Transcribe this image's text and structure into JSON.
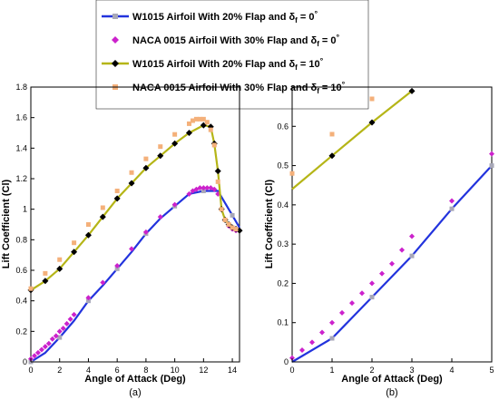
{
  "legend": {
    "entries": [
      {
        "id": "w0",
        "label": "W1015 Airfoil With 20% Flap and δf = 0°",
        "color": "#2233dd",
        "style": "line-square"
      },
      {
        "id": "n0",
        "label": "NACA 0015 Airfoil With 30% Flap and δf = 0°",
        "color": "#cc22cc",
        "style": "marker-diamond"
      },
      {
        "id": "w10",
        "label": "W1015 Airfoil With 20% Flap and δf = 10°",
        "color": "#b5b517",
        "style": "line-diamond"
      },
      {
        "id": "n10",
        "label": "NACA 0015 Airfoil With 30% Flap and δf = 10°",
        "color": "#f4b07a",
        "style": "marker-square"
      }
    ]
  },
  "chart_data": [
    {
      "type": "line",
      "caption": "(a)",
      "xlabel": "Angle of Attack (Deg)",
      "ylabel": "Lift Coefficient (Cl)",
      "xlim": [
        0,
        14.5
      ],
      "ylim": [
        0,
        1.8
      ],
      "xticks": [
        "0",
        "2",
        "4",
        "6",
        "8",
        "10",
        "12",
        "14"
      ],
      "yticks": [
        "0",
        "0.2",
        "0.4",
        "0.6",
        "0.8",
        "1",
        "1.2",
        "1.4",
        "1.6",
        "1.8"
      ],
      "grid": false,
      "series": [
        {
          "name": "W1015 Airfoil With 20% Flap and δf = 0°",
          "x": [
            0,
            1,
            2,
            3,
            4,
            5,
            6,
            7,
            8,
            9,
            10,
            11,
            12,
            13,
            14,
            14.5
          ],
          "y": [
            0,
            0.06,
            0.16,
            0.27,
            0.4,
            0.5,
            0.61,
            0.72,
            0.84,
            0.94,
            1.02,
            1.1,
            1.12,
            1.12,
            0.96,
            0.88
          ],
          "markers": [
            0,
            2,
            4,
            6,
            8,
            10,
            12,
            14
          ]
        },
        {
          "name": "NACA 0015 Airfoil With 30% Flap and δf = 0°",
          "x": [
            0,
            0.25,
            0.5,
            0.75,
            1,
            1.25,
            1.5,
            1.75,
            2,
            2.25,
            2.5,
            2.75,
            3,
            4,
            5,
            6,
            7,
            8,
            9,
            10,
            11,
            11.25,
            11.5,
            11.75,
            12,
            12.25,
            12.5,
            12.75,
            13,
            13.25,
            13.5,
            13.75,
            14,
            14.25
          ],
          "y": [
            0.02,
            0.04,
            0.06,
            0.08,
            0.1,
            0.12,
            0.15,
            0.17,
            0.2,
            0.22,
            0.25,
            0.28,
            0.31,
            0.42,
            0.52,
            0.63,
            0.74,
            0.85,
            0.95,
            1.03,
            1.1,
            1.12,
            1.13,
            1.14,
            1.14,
            1.14,
            1.14,
            1.13,
            1.1,
            1.0,
            0.93,
            0.89,
            0.87,
            0.86
          ]
        },
        {
          "name": "W1015 Airfoil With 20% Flap and δf = 10°",
          "x": [
            0,
            1,
            2,
            3,
            4,
            5,
            6,
            7,
            8,
            9,
            10,
            11,
            12,
            12.5,
            12.75,
            13,
            13.25,
            13.5,
            13.75,
            14,
            14.25,
            14.5
          ],
          "y": [
            0.47,
            0.53,
            0.61,
            0.72,
            0.83,
            0.95,
            1.07,
            1.17,
            1.27,
            1.35,
            1.43,
            1.5,
            1.55,
            1.54,
            1.43,
            1.25,
            1.0,
            0.93,
            0.9,
            0.88,
            0.87,
            0.86
          ],
          "markers": [
            0,
            1,
            2,
            3,
            4,
            5,
            6,
            7,
            8,
            9,
            10,
            11,
            12,
            12.5,
            12.75,
            13,
            13.25,
            13.5,
            13.75,
            14,
            14.25,
            14.5
          ]
        },
        {
          "name": "NACA 0015 Airfoil With 30% Flap and δf = 10°",
          "x": [
            0,
            1,
            2,
            3,
            4,
            5,
            6,
            7,
            8,
            9,
            10,
            11,
            11.25,
            11.5,
            11.75,
            12,
            12.25,
            12.5,
            12.75,
            13,
            13.25,
            13.5,
            13.75,
            14,
            14.25
          ],
          "y": [
            0.48,
            0.58,
            0.67,
            0.78,
            0.9,
            1.01,
            1.12,
            1.24,
            1.33,
            1.41,
            1.49,
            1.56,
            1.58,
            1.59,
            1.59,
            1.59,
            1.57,
            1.52,
            1.42,
            1.18,
            1.0,
            0.93,
            0.9,
            0.88,
            0.87
          ]
        }
      ]
    },
    {
      "type": "line",
      "caption": "(b)",
      "xlabel": "Angle of Attack (Deg)",
      "ylabel": "Lift Coefficient (Cl)",
      "xlim": [
        0,
        5
      ],
      "ylim": [
        0,
        0.7
      ],
      "xticks": [
        "0",
        "1",
        "2",
        "3",
        "4",
        "5"
      ],
      "yticks": [
        "0",
        "0.1",
        "0.2",
        "0.3",
        "0.4",
        "0.5",
        "0.6"
      ],
      "grid": false,
      "series": [
        {
          "name": "W1015 Airfoil With 20% Flap and δf = 0°",
          "x": [
            0,
            1,
            2,
            3,
            4,
            5
          ],
          "y": [
            0,
            0.06,
            0.165,
            0.27,
            0.39,
            0.5
          ],
          "markers": [
            1,
            2,
            3,
            4,
            5
          ]
        },
        {
          "name": "NACA 0015 Airfoil With 30% Flap and δf = 0°",
          "x": [
            0,
            0.25,
            0.5,
            0.75,
            1,
            1.25,
            1.5,
            1.75,
            2,
            2.25,
            2.5,
            2.75,
            3,
            4,
            5
          ],
          "y": [
            0.01,
            0.03,
            0.05,
            0.075,
            0.1,
            0.125,
            0.15,
            0.175,
            0.2,
            0.225,
            0.25,
            0.285,
            0.32,
            0.41,
            0.53
          ]
        },
        {
          "name": "W1015 Airfoil With 20% Flap and δf = 10°",
          "x": [
            0,
            1,
            2,
            3
          ],
          "y": [
            0.44,
            0.525,
            0.61,
            0.69
          ],
          "markers": [
            1,
            2,
            3
          ]
        },
        {
          "name": "NACA 0015 Airfoil With 30% Flap and δf = 10°",
          "x": [
            0,
            1,
            2
          ],
          "y": [
            0.48,
            0.58,
            0.67
          ]
        }
      ]
    }
  ]
}
